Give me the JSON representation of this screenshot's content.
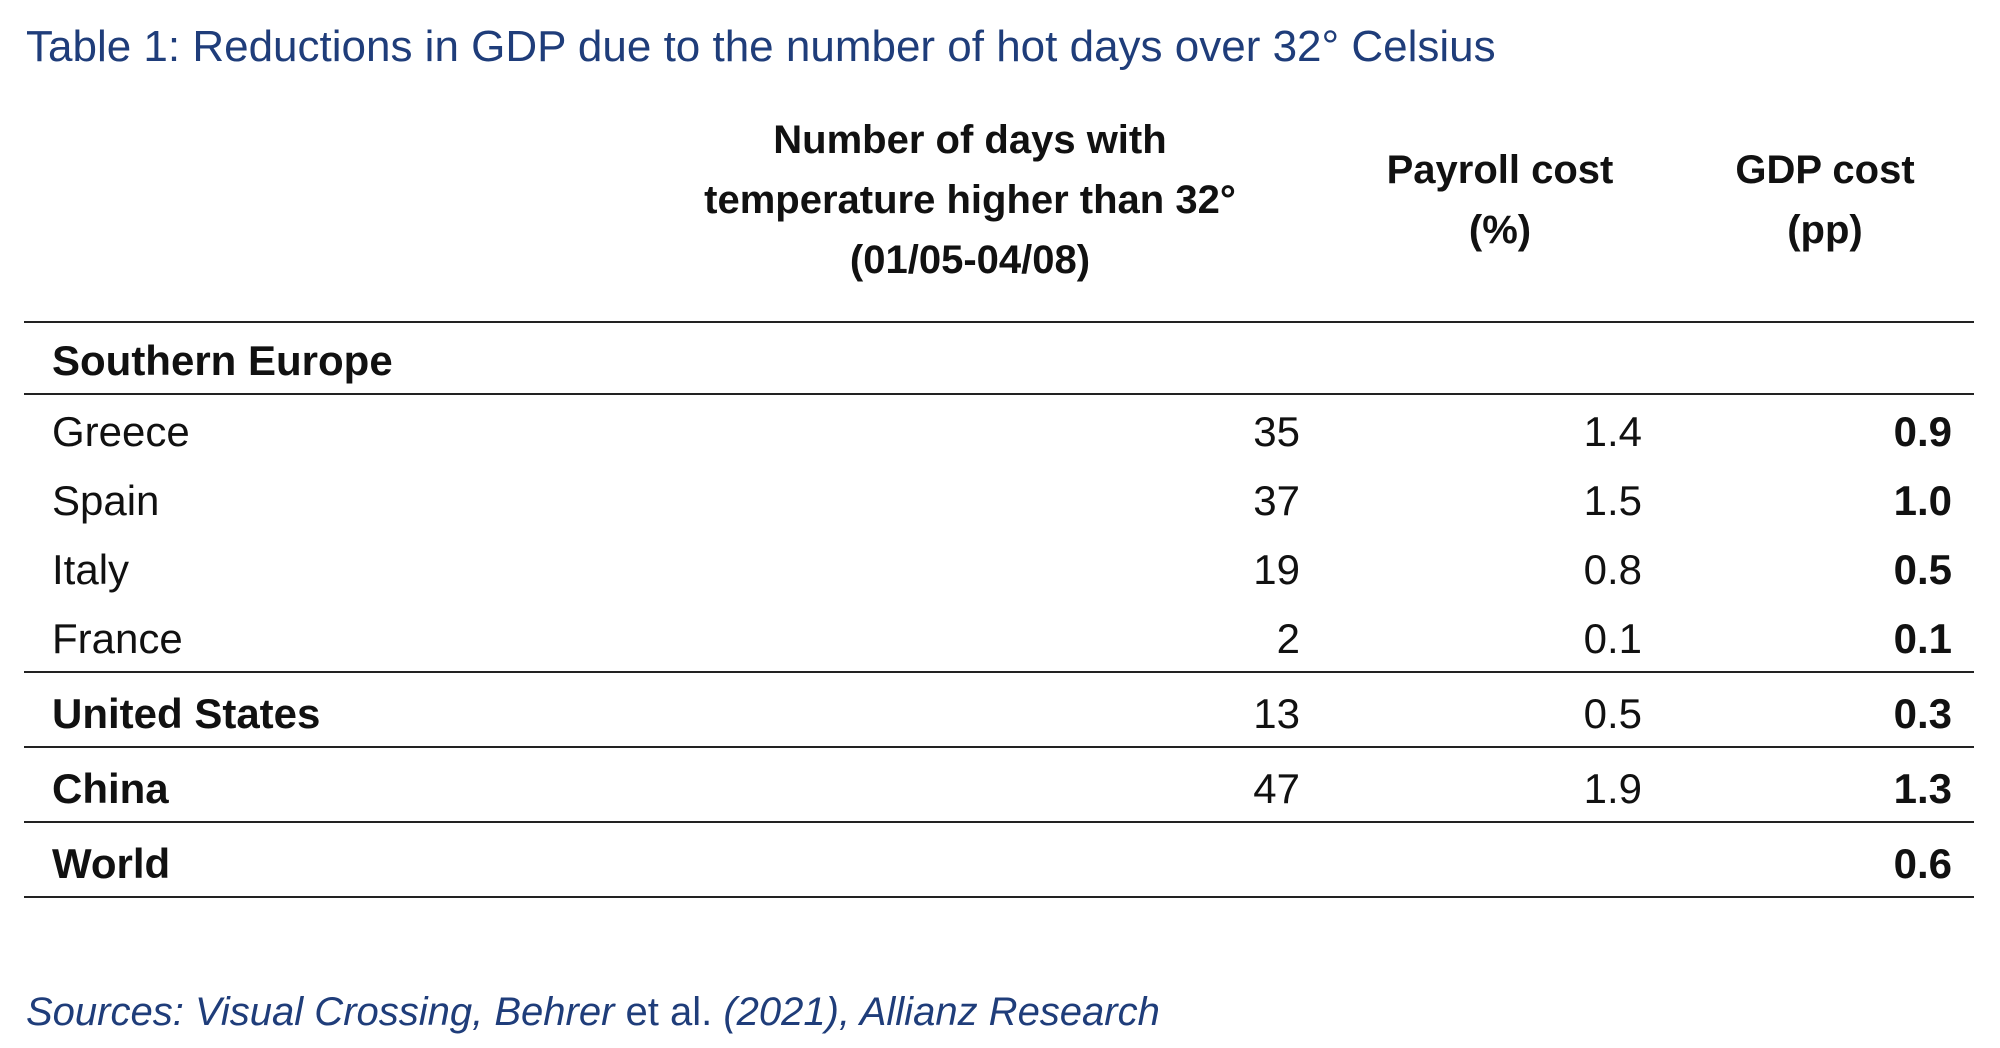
{
  "chart_data": {
    "type": "table",
    "title": "Table 1: Reductions in GDP due to the number of hot days over 32° Celsius",
    "columns": [
      {
        "lines": [
          "Number of days with",
          "temperature higher than 32°",
          "(01/05-04/08)"
        ]
      },
      {
        "lines": [
          "Payroll cost",
          "(%)"
        ]
      },
      {
        "lines": [
          "GDP cost",
          "(pp)"
        ]
      }
    ],
    "rows": [
      {
        "label": "Southern Europe",
        "days": "",
        "payroll": "",
        "gdp": ""
      },
      {
        "label": "Greece",
        "days": "35",
        "payroll": "1.4",
        "gdp": "0.9"
      },
      {
        "label": "Spain",
        "days": "37",
        "payroll": "1.5",
        "gdp": "1.0"
      },
      {
        "label": "Italy",
        "days": "19",
        "payroll": "0.8",
        "gdp": "0.5"
      },
      {
        "label": "France",
        "days": "2",
        "payroll": "0.1",
        "gdp": "0.1"
      },
      {
        "label": "United States",
        "days": "13",
        "payroll": "0.5",
        "gdp": "0.3"
      },
      {
        "label": "China",
        "days": "47",
        "payroll": "1.9",
        "gdp": "1.3"
      },
      {
        "label": "World",
        "days": "",
        "payroll": "",
        "gdp": "0.6"
      }
    ],
    "source": {
      "part1": "Sources: Visual Crossing, Behrer ",
      "part2": "et al.",
      "part3": " (2021), Allianz Research"
    }
  }
}
